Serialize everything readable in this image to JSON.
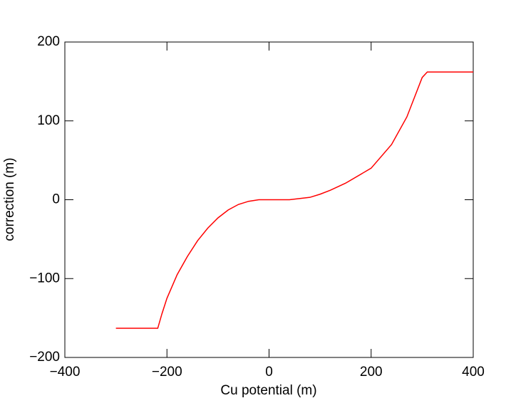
{
  "chart_data": {
    "type": "line",
    "x_label": "Cu potential (m)",
    "y_label": "correction (m)",
    "x": [
      -300,
      -218,
      -210,
      -200,
      -180,
      -160,
      -140,
      -120,
      -100,
      -80,
      -60,
      -40,
      -20,
      0,
      40,
      80,
      100,
      120,
      150,
      200,
      240,
      270,
      300,
      310,
      400
    ],
    "series": [
      {
        "color": "#ff0000",
        "values": [
          -163,
          -163,
          -145,
          -125,
          -95,
          -72,
          -52,
          -36,
          -23,
          -13,
          -6,
          -2,
          0,
          0,
          0,
          3,
          7,
          12,
          21,
          40,
          70,
          105,
          155,
          162,
          162
        ]
      }
    ],
    "xlim": [
      -400,
      400
    ],
    "ylim": [
      -200,
      200
    ],
    "xticks": [
      {
        "value": -400,
        "label": "−400"
      },
      {
        "value": -200,
        "label": "−200"
      },
      0,
      200,
      400
    ],
    "yticks": [
      {
        "value": -200,
        "label": "−200"
      },
      {
        "value": -100,
        "label": "−100"
      },
      0,
      100,
      200
    ]
  }
}
